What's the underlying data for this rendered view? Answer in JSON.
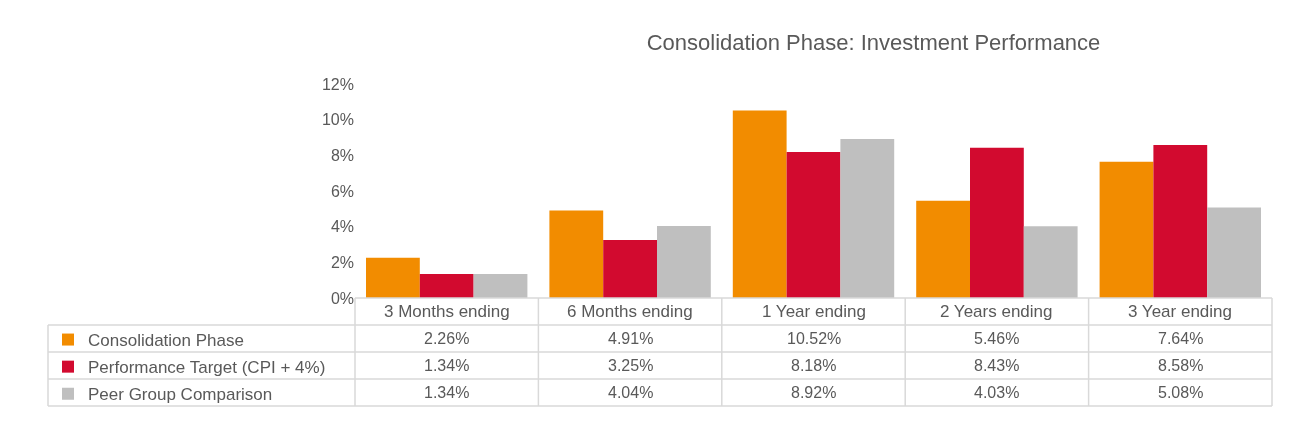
{
  "chart_data": {
    "type": "bar",
    "title": "Consolidation Phase: Investment Performance",
    "categories": [
      "3 Months ending",
      "6 Months ending",
      "1 Year ending",
      "2 Years ending",
      "3 Year ending"
    ],
    "series": [
      {
        "name": "Consolidation Phase",
        "color": "#f28c00",
        "values": [
          2.26,
          4.91,
          10.52,
          5.46,
          7.64
        ],
        "value_labels": [
          "2.26%",
          "4.91%",
          "10.52%",
          "5.46%",
          "7.64%"
        ]
      },
      {
        "name": "Performance Target (CPI + 4%)",
        "color": "#d20a2f",
        "values": [
          1.34,
          3.25,
          8.18,
          8.43,
          8.58
        ],
        "value_labels": [
          "1.34%",
          "3.25%",
          "8.18%",
          "8.43%",
          "8.58%"
        ]
      },
      {
        "name": "Peer Group Comparison",
        "color": "#bfbfbf",
        "values": [
          1.34,
          4.04,
          8.92,
          4.03,
          5.08
        ],
        "value_labels": [
          "1.34%",
          "4.04%",
          "8.92%",
          "4.03%",
          "5.08%"
        ]
      }
    ],
    "ylim": [
      0,
      12
    ],
    "yticks": [
      {
        "value": 0,
        "label": "0%"
      },
      {
        "value": 2,
        "label": "2%"
      },
      {
        "value": 4,
        "label": "4%"
      },
      {
        "value": 6,
        "label": "6%"
      },
      {
        "value": 8,
        "label": "8%"
      },
      {
        "value": 10,
        "label": "10%"
      },
      {
        "value": 12,
        "label": "12%"
      }
    ],
    "grid": false,
    "legend": "bottom left"
  }
}
